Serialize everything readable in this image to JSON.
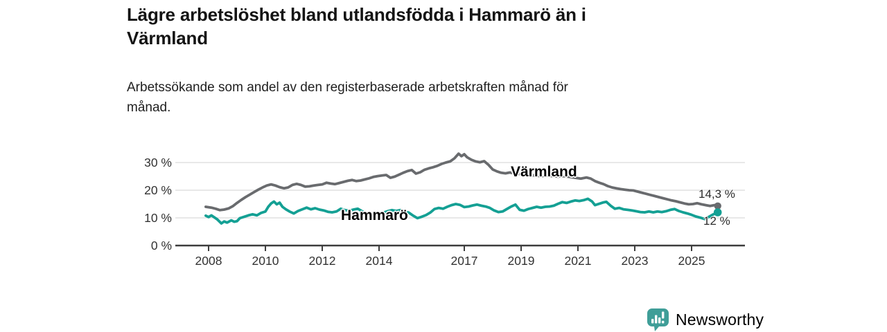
{
  "header": {
    "title": "Lägre arbetslöshet bland utlandsfödda i Hammarö än i Värmland",
    "subtitle": "Arbetssökande som andel av den registerbaserade arbetskraften månad för månad."
  },
  "colors": {
    "varmland_line": "#696b6e",
    "hammaro_line": "#14a094",
    "gridline": "#dadada",
    "axis": "#3c3c3c",
    "tick_text": "#333333",
    "annotation_text": "#2b2b2b",
    "brand_teal": "#3f9e98",
    "background": "#ffffff"
  },
  "footer": {
    "brand": "Newsworthy"
  },
  "icons": {
    "logo": "newsworthy-speech-bubble-bar-chart-icon"
  },
  "chart_data": {
    "type": "line",
    "title": "Lägre arbetslöshet bland utlandsfödda i Hammarö än i Värmland",
    "subtitle": "Arbetssökande som andel av den registerbaserade arbetskraften månad för månad.",
    "xlabel": "",
    "ylabel": "",
    "unit": "%",
    "grid": "horizontal",
    "legend_position": "inline-labels",
    "xlim": [
      2006.9,
      2026.9
    ],
    "ylim": [
      0,
      35
    ],
    "yticks": [
      {
        "value": 0,
        "label": "0 %"
      },
      {
        "value": 10,
        "label": "10 %"
      },
      {
        "value": 20,
        "label": "20 %"
      },
      {
        "value": 30,
        "label": "30 %"
      }
    ],
    "xticks": [
      {
        "value": 2008,
        "label": "2008"
      },
      {
        "value": 2010,
        "label": "2010"
      },
      {
        "value": 2012,
        "label": "2012"
      },
      {
        "value": 2014,
        "label": "2014"
      },
      {
        "value": 2017,
        "label": "2017"
      },
      {
        "value": 2019,
        "label": "2019"
      },
      {
        "value": 2021,
        "label": "2021"
      },
      {
        "value": 2023,
        "label": "2023"
      },
      {
        "value": 2025,
        "label": "2025"
      }
    ],
    "series": [
      {
        "name": "Värmland",
        "color": "#696b6e",
        "end_value": 14.3,
        "end_label": "14,3 %",
        "end_dot_radius": 5.2,
        "points": [
          [
            2007.9,
            14.0
          ],
          [
            2008.1,
            13.7
          ],
          [
            2008.25,
            13.3
          ],
          [
            2008.4,
            12.8
          ],
          [
            2008.55,
            13.0
          ],
          [
            2008.7,
            13.4
          ],
          [
            2008.85,
            14.2
          ],
          [
            2009.0,
            15.4
          ],
          [
            2009.15,
            16.5
          ],
          [
            2009.3,
            17.5
          ],
          [
            2009.45,
            18.4
          ],
          [
            2009.6,
            19.3
          ],
          [
            2009.75,
            20.2
          ],
          [
            2009.9,
            21.0
          ],
          [
            2010.05,
            21.7
          ],
          [
            2010.2,
            22.1
          ],
          [
            2010.35,
            21.7
          ],
          [
            2010.5,
            21.1
          ],
          [
            2010.65,
            20.7
          ],
          [
            2010.8,
            21.0
          ],
          [
            2010.95,
            21.9
          ],
          [
            2011.1,
            22.3
          ],
          [
            2011.25,
            21.9
          ],
          [
            2011.4,
            21.3
          ],
          [
            2011.55,
            21.4
          ],
          [
            2011.7,
            21.7
          ],
          [
            2011.85,
            21.9
          ],
          [
            2012.0,
            22.1
          ],
          [
            2012.15,
            22.7
          ],
          [
            2012.3,
            22.4
          ],
          [
            2012.45,
            22.2
          ],
          [
            2012.6,
            22.6
          ],
          [
            2012.75,
            23.0
          ],
          [
            2012.9,
            23.4
          ],
          [
            2013.05,
            23.7
          ],
          [
            2013.2,
            23.3
          ],
          [
            2013.35,
            23.5
          ],
          [
            2013.5,
            23.9
          ],
          [
            2013.65,
            24.3
          ],
          [
            2013.8,
            24.8
          ],
          [
            2013.95,
            25.1
          ],
          [
            2014.1,
            25.3
          ],
          [
            2014.25,
            25.5
          ],
          [
            2014.4,
            24.5
          ],
          [
            2014.55,
            24.9
          ],
          [
            2014.7,
            25.6
          ],
          [
            2014.85,
            26.3
          ],
          [
            2015.0,
            26.9
          ],
          [
            2015.15,
            27.3
          ],
          [
            2015.3,
            26.0
          ],
          [
            2015.45,
            26.5
          ],
          [
            2015.6,
            27.4
          ],
          [
            2015.75,
            27.9
          ],
          [
            2015.9,
            28.3
          ],
          [
            2016.05,
            28.8
          ],
          [
            2016.2,
            29.5
          ],
          [
            2016.35,
            30.0
          ],
          [
            2016.5,
            30.4
          ],
          [
            2016.65,
            31.5
          ],
          [
            2016.8,
            33.2
          ],
          [
            2016.9,
            32.3
          ],
          [
            2017.0,
            33.0
          ],
          [
            2017.1,
            31.9
          ],
          [
            2017.25,
            31.0
          ],
          [
            2017.4,
            30.4
          ],
          [
            2017.55,
            30.1
          ],
          [
            2017.7,
            30.5
          ],
          [
            2017.85,
            29.2
          ],
          [
            2018.0,
            27.5
          ],
          [
            2018.15,
            26.8
          ],
          [
            2018.3,
            26.3
          ],
          [
            2018.45,
            26.1
          ],
          [
            2018.6,
            26.4
          ],
          [
            2018.75,
            26.1
          ],
          [
            2018.9,
            25.9
          ],
          [
            2019.1,
            25.7
          ],
          [
            2019.3,
            25.5
          ],
          [
            2019.5,
            25.3
          ],
          [
            2019.7,
            25.1
          ],
          [
            2019.9,
            25.3
          ],
          [
            2020.1,
            25.1
          ],
          [
            2020.3,
            24.9
          ],
          [
            2020.5,
            25.1
          ],
          [
            2020.7,
            24.8
          ],
          [
            2020.9,
            24.5
          ],
          [
            2021.1,
            24.2
          ],
          [
            2021.3,
            24.6
          ],
          [
            2021.45,
            24.2
          ],
          [
            2021.6,
            23.3
          ],
          [
            2021.75,
            22.7
          ],
          [
            2021.9,
            22.2
          ],
          [
            2022.05,
            21.5
          ],
          [
            2022.2,
            21.0
          ],
          [
            2022.35,
            20.7
          ],
          [
            2022.5,
            20.4
          ],
          [
            2022.65,
            20.2
          ],
          [
            2022.8,
            20.0
          ],
          [
            2022.95,
            19.9
          ],
          [
            2023.1,
            19.5
          ],
          [
            2023.25,
            19.1
          ],
          [
            2023.4,
            18.7
          ],
          [
            2023.55,
            18.3
          ],
          [
            2023.7,
            17.9
          ],
          [
            2023.85,
            17.5
          ],
          [
            2024.0,
            17.1
          ],
          [
            2024.15,
            16.7
          ],
          [
            2024.3,
            16.3
          ],
          [
            2024.45,
            16.0
          ],
          [
            2024.6,
            15.6
          ],
          [
            2024.75,
            15.2
          ],
          [
            2024.9,
            14.9
          ],
          [
            2025.05,
            15.0
          ],
          [
            2025.2,
            15.3
          ],
          [
            2025.35,
            14.9
          ],
          [
            2025.5,
            14.6
          ],
          [
            2025.65,
            14.3
          ],
          [
            2025.8,
            14.6
          ],
          [
            2025.92,
            14.3
          ]
        ]
      },
      {
        "name": "Hammarö",
        "color": "#14a094",
        "end_value": 12,
        "end_label": "12 %",
        "end_dot_radius": 5.8,
        "points": [
          [
            2007.9,
            10.8
          ],
          [
            2008.0,
            10.3
          ],
          [
            2008.1,
            10.9
          ],
          [
            2008.2,
            10.2
          ],
          [
            2008.3,
            9.5
          ],
          [
            2008.45,
            8.0
          ],
          [
            2008.55,
            8.7
          ],
          [
            2008.65,
            8.3
          ],
          [
            2008.8,
            9.1
          ],
          [
            2008.9,
            8.6
          ],
          [
            2009.0,
            8.8
          ],
          [
            2009.1,
            9.9
          ],
          [
            2009.25,
            10.4
          ],
          [
            2009.4,
            10.9
          ],
          [
            2009.55,
            11.3
          ],
          [
            2009.7,
            10.9
          ],
          [
            2009.85,
            11.8
          ],
          [
            2010.0,
            12.3
          ],
          [
            2010.1,
            14.0
          ],
          [
            2010.2,
            15.2
          ],
          [
            2010.3,
            15.9
          ],
          [
            2010.4,
            14.9
          ],
          [
            2010.5,
            15.5
          ],
          [
            2010.6,
            14.0
          ],
          [
            2010.72,
            13.1
          ],
          [
            2010.85,
            12.3
          ],
          [
            2011.0,
            11.6
          ],
          [
            2011.15,
            12.5
          ],
          [
            2011.3,
            13.1
          ],
          [
            2011.45,
            13.7
          ],
          [
            2011.6,
            13.1
          ],
          [
            2011.75,
            13.5
          ],
          [
            2011.9,
            13.0
          ],
          [
            2012.05,
            12.7
          ],
          [
            2012.2,
            12.2
          ],
          [
            2012.35,
            12.0
          ],
          [
            2012.5,
            12.3
          ],
          [
            2012.65,
            13.3
          ],
          [
            2012.8,
            12.8
          ],
          [
            2012.95,
            12.6
          ],
          [
            2013.1,
            13.0
          ],
          [
            2013.25,
            13.3
          ],
          [
            2013.4,
            12.4
          ],
          [
            2013.55,
            11.5
          ],
          [
            2013.7,
            10.9
          ],
          [
            2013.85,
            11.3
          ],
          [
            2014.0,
            11.6
          ],
          [
            2014.15,
            11.9
          ],
          [
            2014.3,
            12.4
          ],
          [
            2014.45,
            12.8
          ],
          [
            2014.6,
            12.5
          ],
          [
            2014.75,
            12.8
          ],
          [
            2014.9,
            12.4
          ],
          [
            2015.05,
            11.9
          ],
          [
            2015.2,
            10.8
          ],
          [
            2015.35,
            9.9
          ],
          [
            2015.5,
            10.4
          ],
          [
            2015.65,
            11.0
          ],
          [
            2015.8,
            11.9
          ],
          [
            2015.95,
            13.2
          ],
          [
            2016.1,
            13.6
          ],
          [
            2016.25,
            13.3
          ],
          [
            2016.4,
            14.0
          ],
          [
            2016.55,
            14.6
          ],
          [
            2016.7,
            15.0
          ],
          [
            2016.85,
            14.7
          ],
          [
            2017.0,
            13.9
          ],
          [
            2017.15,
            14.1
          ],
          [
            2017.3,
            14.5
          ],
          [
            2017.45,
            14.8
          ],
          [
            2017.6,
            14.4
          ],
          [
            2017.75,
            14.1
          ],
          [
            2017.9,
            13.6
          ],
          [
            2018.05,
            12.7
          ],
          [
            2018.2,
            12.1
          ],
          [
            2018.35,
            12.3
          ],
          [
            2018.5,
            13.2
          ],
          [
            2018.65,
            14.1
          ],
          [
            2018.8,
            14.8
          ],
          [
            2018.95,
            12.9
          ],
          [
            2019.1,
            12.6
          ],
          [
            2019.25,
            13.2
          ],
          [
            2019.4,
            13.6
          ],
          [
            2019.55,
            14.0
          ],
          [
            2019.7,
            13.7
          ],
          [
            2019.85,
            14.0
          ],
          [
            2020.0,
            14.1
          ],
          [
            2020.15,
            14.4
          ],
          [
            2020.3,
            15.1
          ],
          [
            2020.45,
            15.7
          ],
          [
            2020.6,
            15.4
          ],
          [
            2020.75,
            15.9
          ],
          [
            2020.9,
            16.3
          ],
          [
            2021.05,
            16.1
          ],
          [
            2021.2,
            16.4
          ],
          [
            2021.35,
            16.9
          ],
          [
            2021.5,
            15.9
          ],
          [
            2021.6,
            14.6
          ],
          [
            2021.75,
            15.1
          ],
          [
            2021.9,
            15.6
          ],
          [
            2022.0,
            15.8
          ],
          [
            2022.15,
            14.4
          ],
          [
            2022.3,
            13.3
          ],
          [
            2022.45,
            13.6
          ],
          [
            2022.6,
            13.1
          ],
          [
            2022.75,
            12.9
          ],
          [
            2022.9,
            12.7
          ],
          [
            2023.05,
            12.4
          ],
          [
            2023.2,
            12.1
          ],
          [
            2023.35,
            12.0
          ],
          [
            2023.5,
            12.3
          ],
          [
            2023.65,
            12.0
          ],
          [
            2023.8,
            12.3
          ],
          [
            2023.95,
            12.1
          ],
          [
            2024.1,
            12.4
          ],
          [
            2024.25,
            12.9
          ],
          [
            2024.4,
            13.2
          ],
          [
            2024.55,
            12.5
          ],
          [
            2024.7,
            12.0
          ],
          [
            2024.85,
            11.6
          ],
          [
            2025.0,
            11.1
          ],
          [
            2025.15,
            10.5
          ],
          [
            2025.3,
            10.1
          ],
          [
            2025.45,
            9.6
          ],
          [
            2025.6,
            10.3
          ],
          [
            2025.75,
            11.2
          ],
          [
            2025.92,
            12.0
          ]
        ]
      }
    ]
  }
}
